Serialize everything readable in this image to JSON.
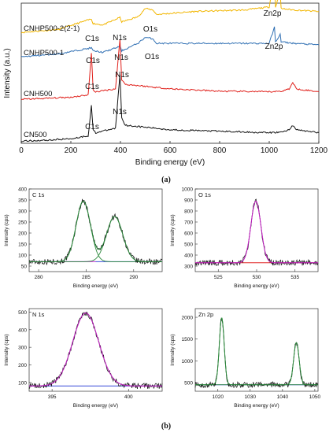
{
  "figure": {
    "label_a": "(a)",
    "label_b": "(b)"
  },
  "chart_data": [
    {
      "type": "line",
      "panel": "a",
      "title": "",
      "xlabel": "Binding energy (eV)",
      "ylabel": "Intensity (a.u.)",
      "xlim": [
        0,
        1200
      ],
      "xticks": [
        "0",
        "200",
        "400",
        "600",
        "800",
        "1000",
        "1200"
      ],
      "grid": false,
      "colors": {
        "CNHP500-2(2-1)": "#f2b600",
        "CNHP500-1": "#2f6fb3",
        "CNH500": "#e0201b",
        "CN500": "#111111"
      },
      "series": [
        {
          "name": "CNHP500-2(2-1)",
          "x": [
            0,
            150,
            283,
            290,
            330,
            398,
            405,
            470,
            500,
            532,
            545,
            700,
            900,
            1000,
            1021,
            1025,
            1044,
            1048,
            1100,
            1200
          ],
          "y": [
            0.1,
            0.2,
            0.55,
            0.4,
            0.35,
            0.6,
            0.45,
            0.62,
            0.9,
            0.85,
            0.7,
            0.8,
            0.85,
            0.95,
            2.0,
            0.95,
            1.45,
            0.9,
            0.85,
            0.8
          ]
        },
        {
          "name": "CNHP500-1",
          "x": [
            0,
            150,
            283,
            290,
            330,
            398,
            405,
            470,
            500,
            532,
            545,
            700,
            900,
            1000,
            1021,
            1025,
            1044,
            1048,
            1100,
            1200
          ],
          "y": [
            0.1,
            0.2,
            0.4,
            0.3,
            0.25,
            0.45,
            0.3,
            0.55,
            0.75,
            0.7,
            0.55,
            0.55,
            0.55,
            0.55,
            1.1,
            0.6,
            0.85,
            0.6,
            0.55,
            0.5
          ]
        },
        {
          "name": "CNH500",
          "x": [
            0,
            100,
            200,
            270,
            283,
            290,
            300,
            380,
            398,
            405,
            420,
            600,
            800,
            1000,
            1050,
            1080,
            1095,
            1110,
            1200
          ],
          "y": [
            0.05,
            0.08,
            0.12,
            0.2,
            1.6,
            0.35,
            0.3,
            0.4,
            2.05,
            0.7,
            0.55,
            0.4,
            0.32,
            0.3,
            0.32,
            0.4,
            0.6,
            0.4,
            0.3
          ]
        },
        {
          "name": "CN500",
          "x": [
            0,
            100,
            200,
            270,
            283,
            290,
            300,
            380,
            398,
            405,
            420,
            600,
            800,
            1000,
            1050,
            1080,
            1095,
            1110,
            1200
          ],
          "y": [
            0.02,
            0.05,
            0.1,
            0.2,
            1.2,
            0.4,
            0.3,
            0.45,
            2.25,
            0.8,
            0.55,
            0.4,
            0.35,
            0.3,
            0.32,
            0.4,
            0.55,
            0.4,
            0.3
          ]
        }
      ],
      "annotations": [
        "C1s",
        "N1s",
        "O1s",
        "Zn2p"
      ]
    },
    {
      "type": "line",
      "panel": "b-C1s",
      "title": "C 1s",
      "xlabel": "Binding energy (eV)",
      "ylabel": "Intensity (cps)",
      "xlim": [
        279,
        293
      ],
      "ylim": [
        25,
        400
      ],
      "xticks": [
        "280",
        "285",
        "290"
      ],
      "yticks": [
        "50",
        "100",
        "150",
        "200",
        "250",
        "300",
        "350",
        "400"
      ],
      "baseline": 70,
      "peaks": [
        {
          "center": 284.7,
          "height": 345,
          "sigma": 0.75
        },
        {
          "center": 288.0,
          "height": 275,
          "sigma": 0.85
        }
      ],
      "fit_color": "#2e8b3e",
      "baseline_color": "#3b4fd8",
      "background_color": "#e44ad6"
    },
    {
      "type": "line",
      "panel": "b-O1s",
      "title": "O 1s",
      "xlabel": "Binding energy (eV)",
      "ylabel": "Intensity (cps)",
      "xlim": [
        522,
        538
      ],
      "ylim": [
        250,
        1000
      ],
      "xticks": [
        "525",
        "530",
        "535"
      ],
      "yticks": [
        "300",
        "400",
        "500",
        "600",
        "700",
        "800",
        "900",
        "1000"
      ],
      "baseline": 330,
      "peaks": [
        {
          "center": 529.9,
          "height": 890,
          "sigma": 0.65
        }
      ],
      "fit_color": "#c020c0",
      "baseline_color": "#e02020"
    },
    {
      "type": "line",
      "panel": "b-N1s",
      "title": "N 1s",
      "xlabel": "Binding energy (eV)",
      "ylabel": "Intensity (cps)",
      "xlim": [
        393.5,
        402.2
      ],
      "ylim": [
        50,
        520
      ],
      "xticks": [
        "395",
        "400"
      ],
      "yticks": [
        "100",
        "200",
        "300",
        "400",
        "500"
      ],
      "baseline": 80,
      "peaks": [
        {
          "center": 397.2,
          "height": 495,
          "sigma": 0.85
        }
      ],
      "fit_color": "#c020c0",
      "baseline_color": "#3b4fd8"
    },
    {
      "type": "line",
      "panel": "b-Zn2p",
      "title": "Zn 2p",
      "xlabel": "Binding energy (eV)",
      "ylabel": "Intensity (cps)",
      "xlim": [
        1013,
        1051
      ],
      "ylim": [
        300,
        2200
      ],
      "xticks": [
        "1020",
        "1030",
        "1040",
        "1050"
      ],
      "yticks": [
        "500",
        "1000",
        "1500",
        "2000"
      ],
      "baseline": 450,
      "peaks": [
        {
          "center": 1021.2,
          "height": 1990,
          "sigma": 0.75
        },
        {
          "center": 1044.3,
          "height": 1420,
          "sigma": 0.85
        }
      ],
      "fit_color": "#2e8b3e",
      "baseline_color": "#3b4fd8"
    }
  ]
}
